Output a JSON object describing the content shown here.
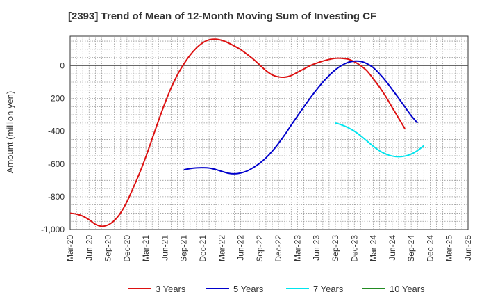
{
  "chart_data": {
    "type": "line",
    "title": "[2393]  Trend of Mean of 12-Month Moving Sum of Investing CF",
    "xlabel": "",
    "ylabel": "Amount (million yen)",
    "ylim": [
      -1000,
      180
    ],
    "yticks": [
      0,
      -200,
      -400,
      -600,
      -800,
      -1000
    ],
    "ytick_labels": [
      "0",
      "-200",
      "-400",
      "-600",
      "-800",
      "-1,000"
    ],
    "x_categories": [
      "Mar-20",
      "Jun-20",
      "Sep-20",
      "Dec-20",
      "Mar-21",
      "Jun-21",
      "Sep-21",
      "Dec-21",
      "Mar-22",
      "Jun-22",
      "Sep-22",
      "Dec-22",
      "Mar-23",
      "Jun-23",
      "Sep-23",
      "Dec-23",
      "Mar-24",
      "Jun-24",
      "Sep-24",
      "Dec-24",
      "Mar-25",
      "Jun-25"
    ],
    "grid": true,
    "legend_position": "bottom",
    "series": [
      {
        "name": "3 Years",
        "color": "#dd1111",
        "start_index": 0,
        "values": [
          -900,
          -906,
          -918,
          -940,
          -968,
          -980,
          -972,
          -945,
          -898,
          -830,
          -745,
          -655,
          -555,
          -445,
          -335,
          -230,
          -135,
          -55,
          10,
          65,
          108,
          140,
          158,
          162,
          155,
          140,
          120,
          98,
          70,
          40,
          5,
          -30,
          -56,
          -68,
          -70,
          -60,
          -40,
          -20,
          0,
          15,
          28,
          38,
          45,
          45,
          40,
          24,
          0,
          -32,
          -80,
          -132,
          -190,
          -256,
          -320,
          -385
        ]
      },
      {
        "name": "5 Years",
        "color": "#0000cc",
        "start_index": 18,
        "values": [
          -635,
          -628,
          -624,
          -623,
          -625,
          -633,
          -645,
          -656,
          -660,
          -655,
          -643,
          -622,
          -596,
          -563,
          -522,
          -474,
          -421,
          -363,
          -307,
          -252,
          -198,
          -148,
          -101,
          -60,
          -25,
          2,
          20,
          28,
          26,
          12,
          -12,
          -50,
          -95,
          -146,
          -198,
          -252,
          -305,
          -350
        ]
      },
      {
        "name": "7 Years",
        "color": "#00e5ee",
        "start_index": 42,
        "values": [
          -350,
          -362,
          -378,
          -400,
          -428,
          -460,
          -492,
          -520,
          -540,
          -552,
          -556,
          -552,
          -540,
          -518,
          -488
        ]
      },
      {
        "name": "10 Years",
        "color": "#228b22",
        "start_index": 0,
        "values": []
      }
    ]
  }
}
